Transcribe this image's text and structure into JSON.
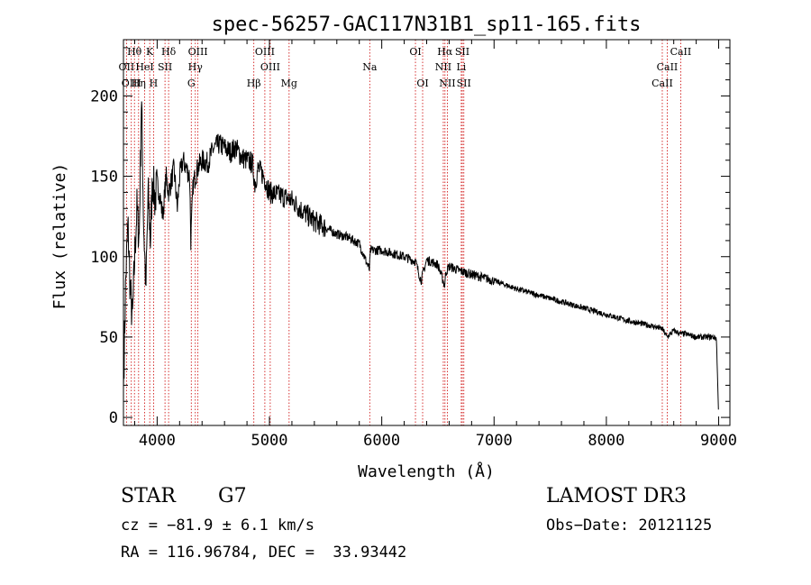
{
  "chart_data": {
    "type": "line",
    "title": "spec-56257-GAC117N31B1_sp11-165.fits",
    "xlabel": "Wavelength (Å)",
    "ylabel": "Flux (relative)",
    "xlim": [
      3700,
      9100
    ],
    "ylim": [
      -5,
      235
    ],
    "xticks": [
      4000,
      5000,
      6000,
      7000,
      8000,
      9000
    ],
    "xtick_labels": [
      "4000",
      "5000",
      "6000",
      "7000",
      "8000",
      "9000"
    ],
    "yticks": [
      0,
      50,
      100,
      150,
      200
    ],
    "ytick_labels": [
      "0",
      "50",
      "100",
      "150",
      "200"
    ],
    "series": [
      {
        "name": "spectrum",
        "x": [
          3700,
          3720,
          3740,
          3760,
          3780,
          3800,
          3820,
          3840,
          3860,
          3880,
          3900,
          3920,
          3940,
          3960,
          3980,
          4000,
          4020,
          4050,
          4080,
          4100,
          4120,
          4150,
          4180,
          4200,
          4230,
          4260,
          4290,
          4300,
          4320,
          4340,
          4360,
          4400,
          4450,
          4500,
          4550,
          4600,
          4650,
          4700,
          4750,
          4800,
          4850,
          4870,
          4900,
          4950,
          5000,
          5100,
          5200,
          5300,
          5400,
          5500,
          5600,
          5700,
          5800,
          5890,
          5900,
          6000,
          6100,
          6200,
          6300,
          6350,
          6400,
          6500,
          6560,
          6570,
          6600,
          6700,
          6800,
          6900,
          7000,
          7200,
          7400,
          7600,
          7800,
          8000,
          8200,
          8400,
          8500,
          8540,
          8600,
          8660,
          8700,
          8800,
          8900,
          8950,
          8980,
          9000
        ],
        "values": [
          18,
          85,
          120,
          80,
          60,
          100,
          130,
          110,
          200,
          120,
          80,
          140,
          110,
          150,
          135,
          145,
          140,
          125,
          150,
          140,
          145,
          155,
          130,
          150,
          160,
          155,
          150,
          110,
          145,
          150,
          155,
          160,
          158,
          167,
          170,
          168,
          165,
          168,
          162,
          160,
          158,
          145,
          155,
          150,
          140,
          138,
          135,
          128,
          122,
          118,
          114,
          112,
          108,
          92,
          104,
          104,
          102,
          100,
          97,
          85,
          98,
          95,
          82,
          90,
          94,
          91,
          89,
          87,
          85,
          80,
          76,
          72,
          68,
          64,
          60,
          57,
          55,
          50,
          54,
          52,
          52,
          50,
          50,
          50,
          49,
          0
        ]
      }
    ],
    "line_labels": [
      {
        "name": "Hθ",
        "x": 3798,
        "row": 1
      },
      {
        "name": "K",
        "x": 3934,
        "row": 1
      },
      {
        "name": "Hδ",
        "x": 4102,
        "row": 1
      },
      {
        "name": "OIII",
        "x": 4363,
        "row": 1
      },
      {
        "name": "OIII",
        "x": 4959,
        "row": 1
      },
      {
        "name": "OI",
        "x": 6300,
        "row": 1
      },
      {
        "name": "Hα",
        "x": 6563,
        "row": 1
      },
      {
        "name": "SII",
        "x": 6717,
        "row": 1
      },
      {
        "name": "CaII",
        "x": 8662,
        "row": 1
      },
      {
        "name": "OII",
        "x": 3727,
        "row": 2
      },
      {
        "name": "HeI",
        "x": 3889,
        "row": 2
      },
      {
        "name": "SII",
        "x": 4070,
        "row": 2
      },
      {
        "name": "Hγ",
        "x": 4340,
        "row": 2
      },
      {
        "name": "OIII",
        "x": 5007,
        "row": 2
      },
      {
        "name": "Na",
        "x": 5893,
        "row": 2
      },
      {
        "name": "NII",
        "x": 6548,
        "row": 2
      },
      {
        "name": "Li",
        "x": 6708,
        "row": 2
      },
      {
        "name": "CaII",
        "x": 8542,
        "row": 2
      },
      {
        "name": "OIII",
        "x": 3770,
        "row": 3
      },
      {
        "name": "Hη",
        "x": 3835,
        "row": 3
      },
      {
        "name": "H",
        "x": 3968,
        "row": 3
      },
      {
        "name": "G",
        "x": 4304,
        "row": 3
      },
      {
        "name": "Hβ",
        "x": 4861,
        "row": 3
      },
      {
        "name": "Mg",
        "x": 5175,
        "row": 3
      },
      {
        "name": "OI",
        "x": 6364,
        "row": 3
      },
      {
        "name": "NII",
        "x": 6584,
        "row": 3
      },
      {
        "name": "SII",
        "x": 6731,
        "row": 3
      },
      {
        "name": "CaII",
        "x": 8498,
        "row": 3
      }
    ],
    "legend": "none",
    "grid": false
  },
  "info": {
    "class_label": "STAR",
    "subclass": "G7",
    "survey": "LAMOST DR3",
    "cz_line": "cz = −81.9 ± 6.1 km/s",
    "obs_date_line": "Obs−Date: 20121125",
    "radec_line": "RA = 116.96784, DEC =  33.93442"
  },
  "colors": {
    "line": "#000000",
    "marker": "#cc0000",
    "axis": "#000000"
  }
}
